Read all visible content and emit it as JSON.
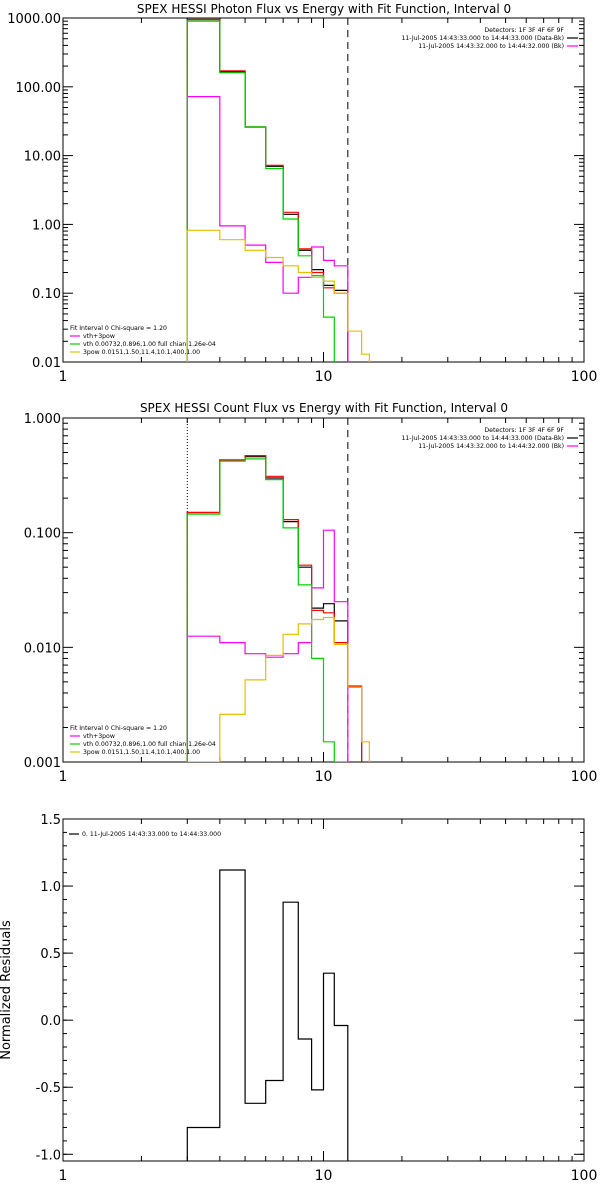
{
  "colors": {
    "data": "#000000",
    "background": "#ff0000",
    "total_fit": "#ff00ff",
    "thermal": "#00d000",
    "power_law": "#e0c000",
    "axes": "#000000"
  },
  "chart_data": [
    {
      "type": "line",
      "title": "SPEX HESSI Photon Flux vs Energy with Fit Function, Interval 0",
      "xlabel": "",
      "ylabel": "",
      "x_scale": "log",
      "y_scale": "log",
      "xlim": [
        1,
        100
      ],
      "ylim": [
        0.01,
        1000
      ],
      "x_ticks": [
        1,
        10,
        100
      ],
      "x_tick_labels": [
        "1",
        "10",
        "100"
      ],
      "y_ticks": [
        0.01,
        0.1,
        1,
        10,
        100,
        1000
      ],
      "y_tick_labels": [
        "0.01",
        "0.10",
        "1.00",
        "10.00",
        "100.00",
        "1000.00"
      ],
      "vlines": [
        {
          "x": 3.0,
          "style": "dotted"
        },
        {
          "x": 12.4,
          "style": "dashed"
        }
      ],
      "legend_top_right": [
        {
          "text": "Detectors: 1F 3F 4F 6F 9F",
          "color": ""
        },
        {
          "text": "11-Jul-2005 14:43:33.000 to 14:44:33.000 (Data-Bk)",
          "color": "#000000"
        },
        {
          "text": "11-Jul-2005 14:43:32.000 to 14:44:32.000 (Bk)",
          "color": "#ff00ff"
        }
      ],
      "legend_bottom_left": [
        {
          "text": "Fit Interval 0   Chi-square = 1.20",
          "color": ""
        },
        {
          "text": "vth+3pow",
          "color": "#ff00ff"
        },
        {
          "text": "vth 0.00732,0.896,1.00   full chian 1.26e-04",
          "color": "#00d000"
        },
        {
          "text": "3pow 0.0151,1.50,11.4,10.1,400,1.00",
          "color": "#e0c000"
        }
      ],
      "energy_edges": [
        3.0,
        4.0,
        5.0,
        6.0,
        7.0,
        8.0,
        9.0,
        10.0,
        11.0,
        12.4,
        14.0,
        15.0
      ],
      "series": [
        {
          "role": "data",
          "color": "#000000",
          "values": [
            950,
            165,
            26,
            7.0,
            1.4,
            0.42,
            0.22,
            0.13,
            0.11,
            null,
            null
          ]
        },
        {
          "role": "background",
          "color": "#ff0000",
          "values": [
            950,
            170,
            26,
            7.2,
            1.5,
            0.44,
            0.2,
            0.12,
            0.1,
            null,
            null
          ]
        },
        {
          "role": "total_fit",
          "color": "#ff00ff",
          "values": [
            72,
            0.95,
            0.5,
            0.28,
            0.1,
            0.17,
            0.47,
            0.3,
            0.25,
            null,
            null
          ]
        },
        {
          "role": "thermal",
          "color": "#00d000",
          "values": [
            900,
            160,
            26,
            6.5,
            1.2,
            0.35,
            0.18,
            0.045,
            0.004,
            null,
            null
          ]
        },
        {
          "role": "power_law",
          "color": "#e0c000",
          "values": [
            0.82,
            0.6,
            0.42,
            0.33,
            0.25,
            0.2,
            0.17,
            0.15,
            0.1,
            0.028,
            0.013
          ]
        }
      ]
    },
    {
      "type": "line",
      "title": "SPEX HESSI Count Flux vs Energy with Fit Function, Interval 0",
      "xlabel": "",
      "ylabel": "",
      "x_scale": "log",
      "y_scale": "log",
      "xlim": [
        1,
        100
      ],
      "ylim": [
        0.001,
        1
      ],
      "x_ticks": [
        1,
        10,
        100
      ],
      "x_tick_labels": [
        "1",
        "10",
        "100"
      ],
      "y_ticks": [
        0.001,
        0.01,
        0.1,
        1
      ],
      "y_tick_labels": [
        "0.001",
        "0.010",
        "0.100",
        "1.000"
      ],
      "vlines": [
        {
          "x": 3.0,
          "style": "dotted"
        },
        {
          "x": 12.4,
          "style": "dashed"
        }
      ],
      "legend_top_right": [
        {
          "text": "Detectors: 1F 3F 4F 6F 9F",
          "color": ""
        },
        {
          "text": "11-Jul-2005 14:43:33.000 to 14:44:33.000 (Data-Bk)",
          "color": "#000000"
        },
        {
          "text": "11-Jul-2005 14:43:32.000 to 14:44:32.000 (Bk)",
          "color": "#ff00ff"
        }
      ],
      "legend_bottom_left": [
        {
          "text": "Fit Interval 0   Chi-square = 1.20",
          "color": ""
        },
        {
          "text": "vth+3pow",
          "color": "#ff00ff"
        },
        {
          "text": "vth 0.00732,0.896,1.00   full chian 1.26e-04",
          "color": "#00d000"
        },
        {
          "text": "3pow 0.0151,1.50,11.4,10.1,400,1.00",
          "color": "#e0c000"
        }
      ],
      "energy_edges": [
        3.0,
        4.0,
        5.0,
        6.0,
        7.0,
        8.0,
        9.0,
        10.0,
        11.0,
        12.4,
        14.0,
        15.0
      ],
      "series": [
        {
          "role": "data",
          "color": "#000000",
          "values": [
            0.15,
            0.43,
            0.46,
            0.3,
            0.125,
            0.05,
            0.022,
            0.024,
            0.017,
            0.0045,
            null
          ]
        },
        {
          "role": "background",
          "color": "#ff0000",
          "values": [
            0.15,
            0.43,
            0.47,
            0.31,
            0.13,
            0.052,
            0.021,
            0.02,
            0.011,
            0.0046,
            null
          ]
        },
        {
          "role": "total_fit",
          "color": "#ff00ff",
          "values": [
            0.0125,
            0.011,
            0.0088,
            0.0082,
            0.0088,
            0.011,
            0.033,
            0.105,
            0.025,
            null,
            null
          ]
        },
        {
          "role": "thermal",
          "color": "#00d000",
          "values": [
            0.145,
            0.42,
            0.44,
            0.29,
            0.11,
            0.035,
            0.008,
            0.0015,
            0.001,
            null,
            null
          ]
        },
        {
          "role": "power_law",
          "color": "#e0c000",
          "values": [
            0.001,
            0.0026,
            0.0052,
            0.0085,
            0.013,
            0.016,
            0.0175,
            0.0182,
            0.0106,
            0.0045,
            0.0015
          ]
        }
      ]
    },
    {
      "type": "line",
      "title": "",
      "xlabel": "",
      "ylabel": "Normalized Residuals",
      "x_scale": "log",
      "y_scale": "linear",
      "xlim": [
        1,
        100
      ],
      "ylim": [
        -1.05,
        1.5
      ],
      "x_ticks": [
        1,
        10,
        100
      ],
      "x_tick_labels": [
        "1",
        "10",
        "100"
      ],
      "y_ticks": [
        -1.0,
        -0.5,
        0.0,
        0.5,
        1.0,
        1.5
      ],
      "y_tick_labels": [
        "-1.0",
        "-0.5",
        "0.0",
        "0.5",
        "1.0",
        "1.5"
      ],
      "legend_top_left": [
        {
          "text": "0. 11-Jul-2005 14:43:33.000 to 14:44:33.000",
          "color": "#000000"
        }
      ],
      "energy_edges": [
        3.0,
        4.0,
        5.0,
        6.0,
        7.0,
        8.0,
        9.0,
        10.0,
        11.0,
        12.4
      ],
      "series": [
        {
          "role": "residuals",
          "color": "#000000",
          "values": [
            -0.8,
            1.12,
            -0.62,
            -0.45,
            0.88,
            -0.14,
            -0.52,
            0.35,
            -0.04
          ]
        }
      ]
    }
  ]
}
